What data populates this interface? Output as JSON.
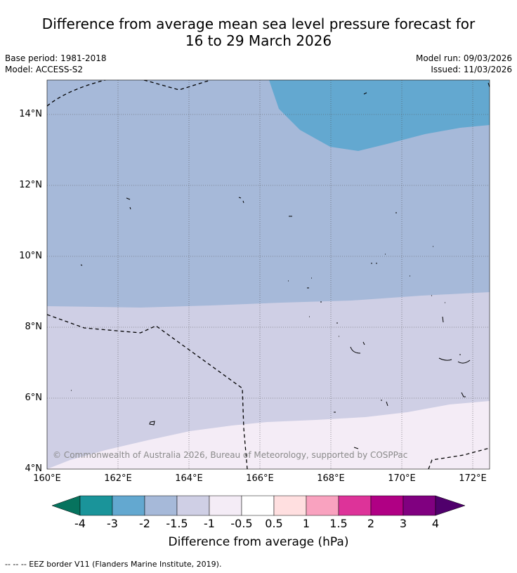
{
  "title_line1": "Difference from average mean sea level pressure forecast for",
  "title_line2": "16 to 29 March 2026",
  "base_period": "Base period: 1981-2018",
  "model": "Model: ACCESS-S2",
  "model_run": "Model run: 09/03/2026",
  "issued": "Issued: 11/03/2026",
  "copyright": "© Commonwealth of Australia 2026, Bureau of Meteorology, supported by COSPPac",
  "lat_ticks": [
    "14°N",
    "12°N",
    "10°N",
    "8°N",
    "6°N",
    "4°N"
  ],
  "lon_ticks": [
    "160°E",
    "162°E",
    "164°E",
    "166°E",
    "168°E",
    "170°E",
    "172°E"
  ],
  "colorbar": {
    "ticks": [
      "-4",
      "-3",
      "-2",
      "-1.5",
      "-1",
      "-0.5",
      "0.5",
      "1",
      "1.5",
      "2",
      "3",
      "4"
    ],
    "label": "Difference from average (hPa)",
    "colors": {
      "below_-4": "#06735e",
      "-4_-3": "#1a949a",
      "-3_-2": "#63a8d0",
      "-2_-1.5": "#a6b9d9",
      "-1.5_-1": "#cfcfe5",
      "-1_-0.5": "#f4ecf6",
      "-0.5_0.5": "#ffffff",
      "0.5_1": "#ffdfe0",
      "1_1.5": "#f9a2bf",
      "1.5_2": "#dd3399",
      "2_3": "#b00084",
      "3_4": "#800080",
      "above_4": "#50006c"
    }
  },
  "map_fill": {
    "deep": "#63a8d0",
    "mid": "#a6b9d9",
    "light": "#cfcfe5",
    "pale": "#f4ecf6"
  },
  "footnote": "-- -- -- EEZ border V11 (Flanders Marine Institute, 2019)."
}
